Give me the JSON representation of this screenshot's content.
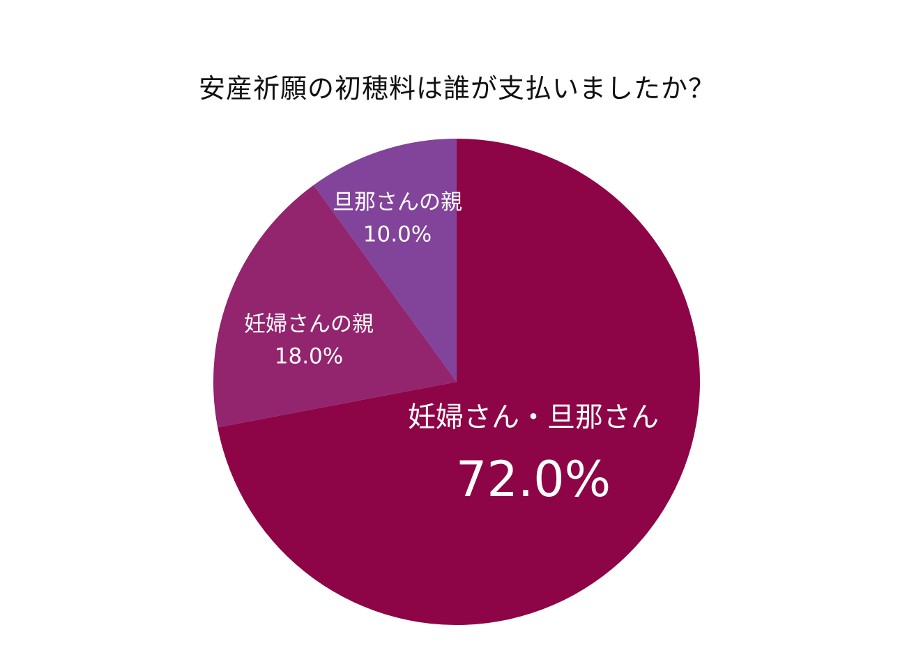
{
  "chart_data": {
    "type": "pie",
    "title": "安産祈願の初穂料は誰が支払いましたか？",
    "start": "top",
    "direction": "clockwise",
    "slices": [
      {
        "label": "妊婦さん・旦那さん",
        "value": 72.0,
        "value_label": "72.0%",
        "color": "#8d0546"
      },
      {
        "label": "妊婦さんの親",
        "value": 18.0,
        "value_label": "18.0%",
        "color": "#93246e"
      },
      {
        "label": "旦那さんの親",
        "value": 10.0,
        "value_label": "10.0%",
        "color": "#82439a"
      }
    ]
  }
}
